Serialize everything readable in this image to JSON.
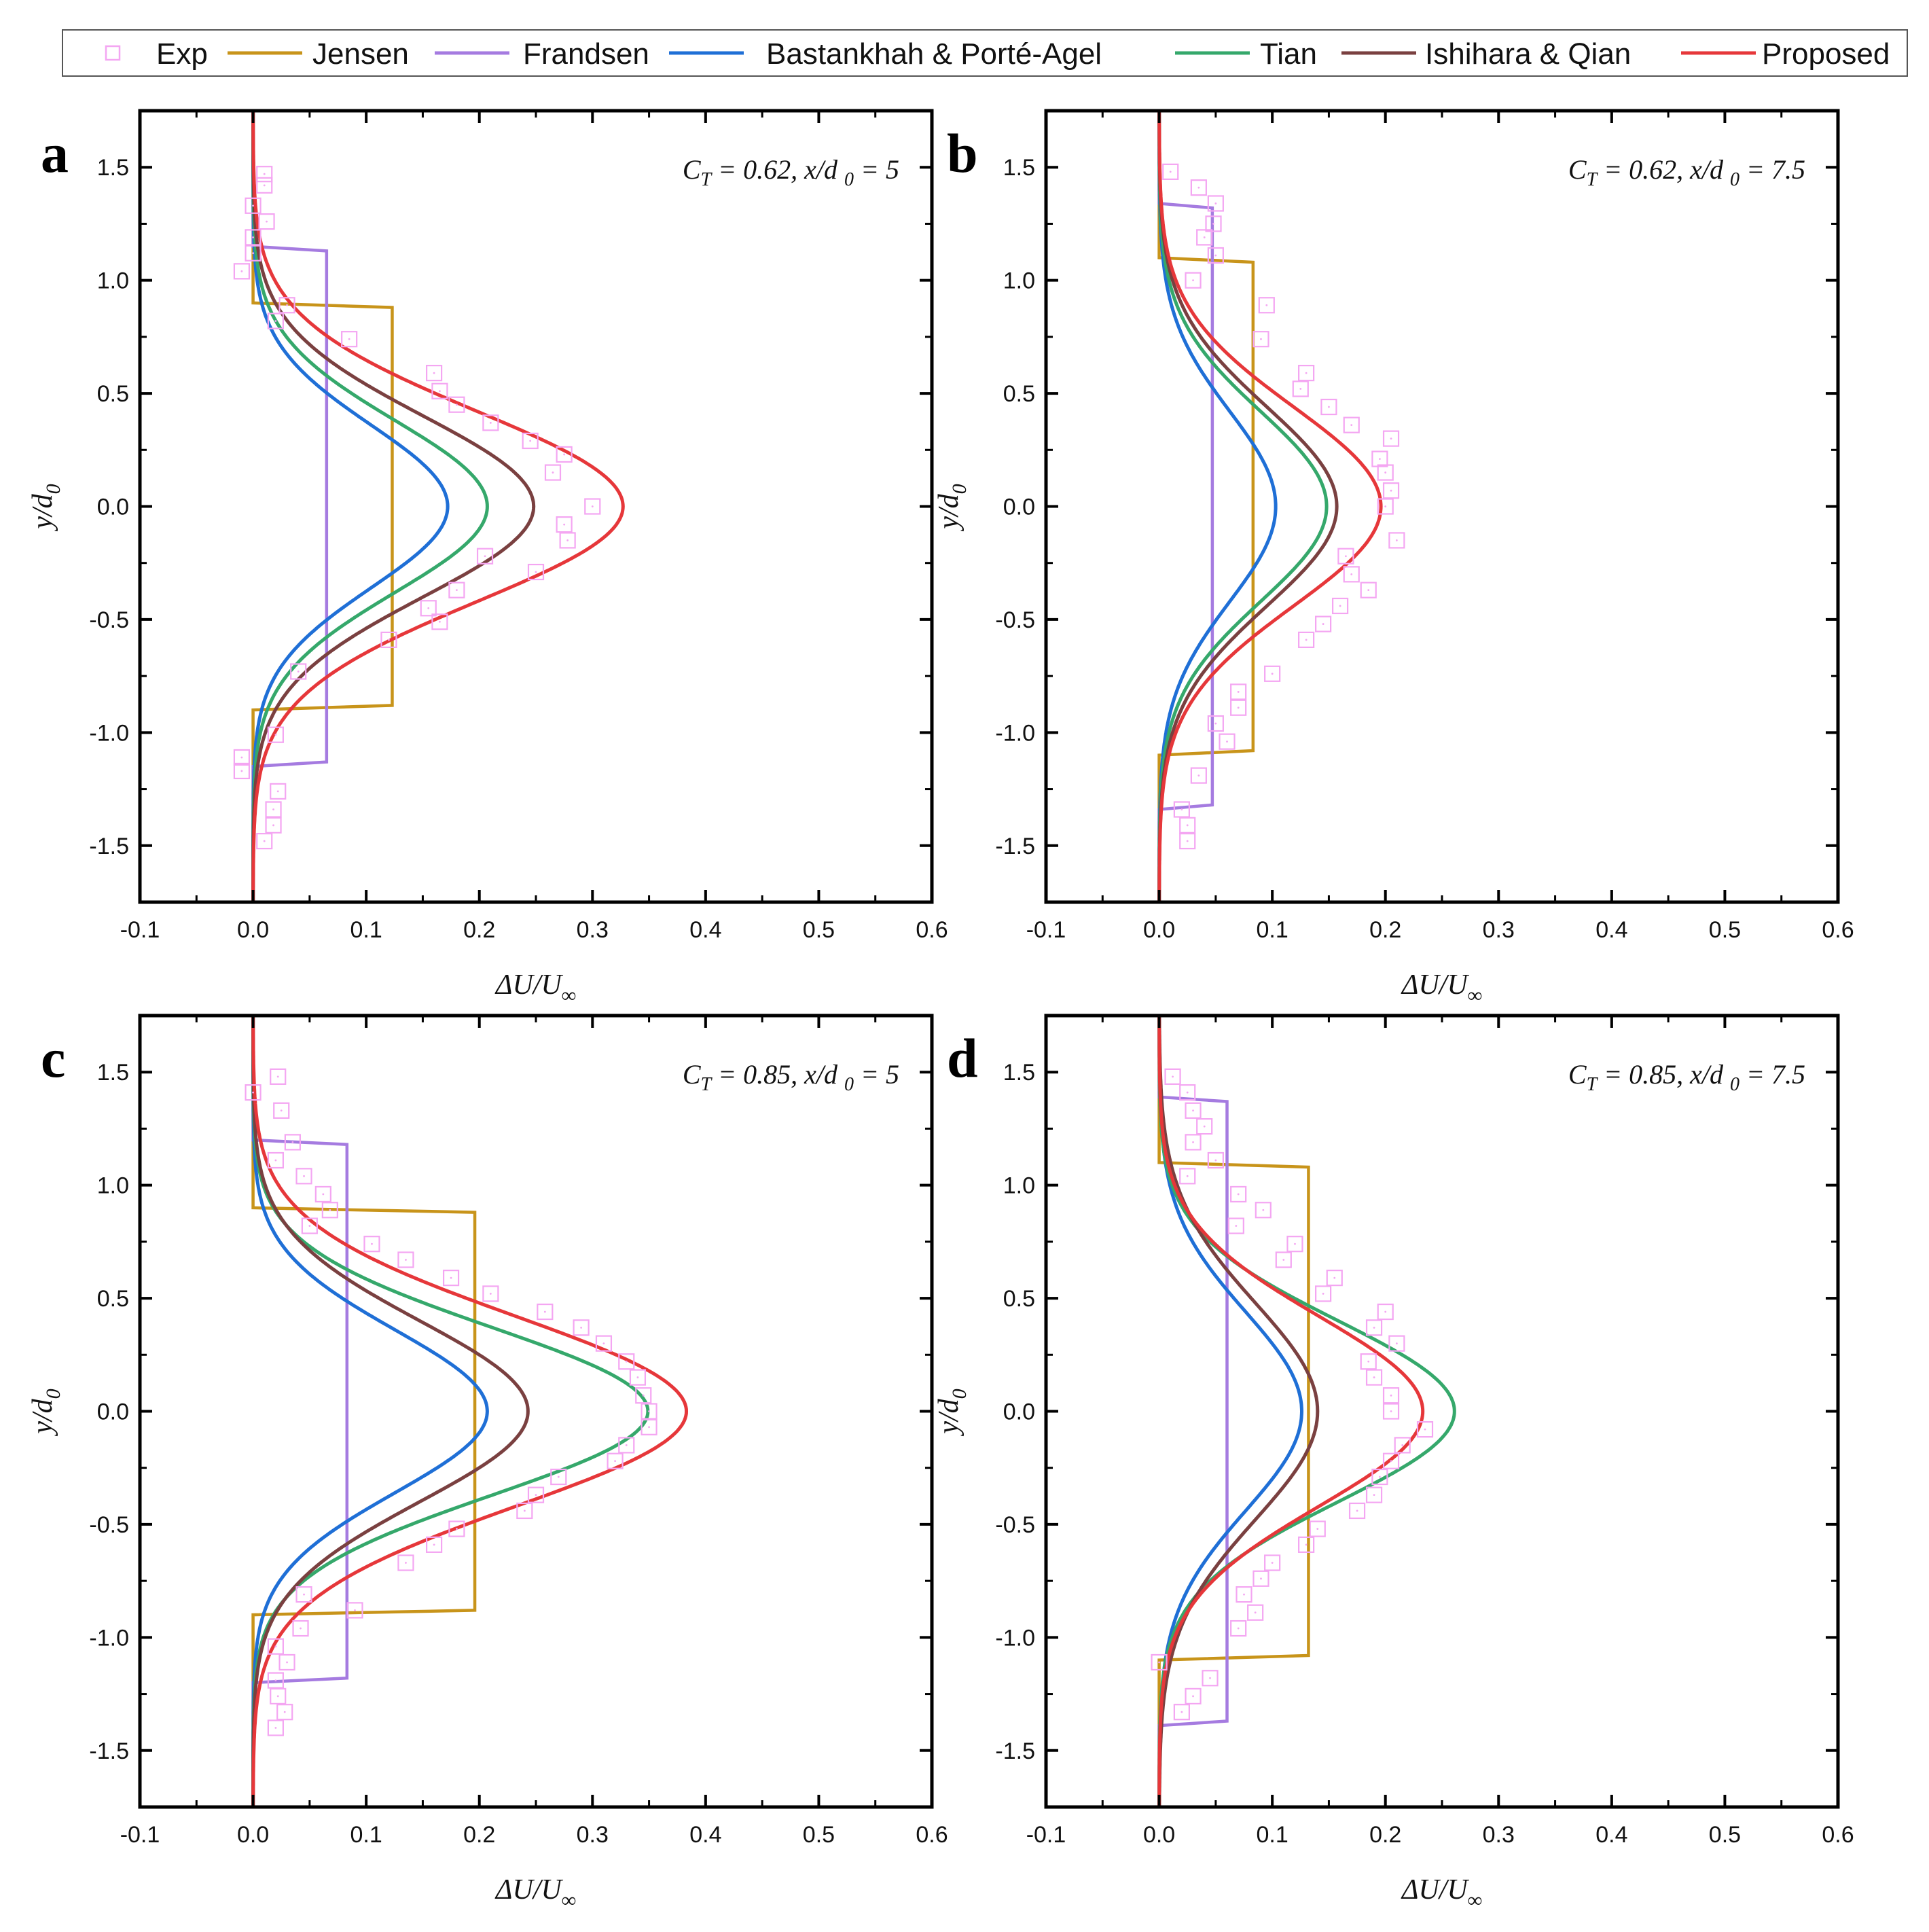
{
  "chart_data": {
    "type": "line",
    "legend": {
      "position": "top",
      "entries": [
        {
          "key": "exp",
          "label": "Exp",
          "color": "#f4a6f2",
          "marker": "square"
        },
        {
          "key": "jensen",
          "label": "Jensen",
          "color": "#c8941a"
        },
        {
          "key": "frandsen",
          "label": "Frandsen",
          "color": "#a57be0"
        },
        {
          "key": "bastankhah",
          "label": "Bastankhah & Porté-Agel",
          "color": "#1f6fd6"
        },
        {
          "key": "tian",
          "label": "Tian",
          "color": "#35a86b"
        },
        {
          "key": "ishihara",
          "label": "Ishihara & Qian",
          "color": "#7a4040"
        },
        {
          "key": "proposed",
          "label": "Proposed",
          "color": "#e6373a"
        }
      ]
    },
    "axes": {
      "xlim": [
        -0.1,
        0.6
      ],
      "ylim": [
        -1.75,
        1.75
      ],
      "xticks": [
        "-0.1",
        "0.0",
        "0.1",
        "0.2",
        "0.3",
        "0.4",
        "0.5",
        "0.6"
      ],
      "yticks": [
        "-1.5",
        "-1.0",
        "-0.5",
        "0.0",
        "0.5",
        "1.0",
        "1.5"
      ],
      "grid": false
    },
    "panels": [
      {
        "id": "a",
        "letter": "a",
        "annotation": "C_T = 0.62, x/d_0 = 5",
        "ct": "C",
        "ct_sub": "T",
        "ct_val": " = 0.62, x/d ",
        "xd_sub": "0",
        "xd_val": " = 5",
        "xlabel": "ΔU/U",
        "xlabel_sub": "∞",
        "ylabel": "y/d",
        "ylabel_sub": "0",
        "jensen": {
          "height": 0.123,
          "halfwidth": 0.88
        },
        "frandsen": {
          "height": 0.065,
          "halfwidth": 1.13
        },
        "gauss": {
          "bastankhah": [
            0.172,
            0.36
          ],
          "tian": [
            0.207,
            0.38
          ],
          "ishihara": [
            0.248,
            0.4
          ],
          "proposed": [
            0.327,
            0.42
          ]
        },
        "exp": [
          [
            0.01,
            1.47
          ],
          [
            0.01,
            1.42
          ],
          [
            0.0,
            1.33
          ],
          [
            0.012,
            1.26
          ],
          [
            0.0,
            1.19
          ],
          [
            0.0,
            1.12
          ],
          [
            -0.01,
            1.04
          ],
          [
            0.03,
            0.89
          ],
          [
            0.02,
            0.82
          ],
          [
            0.085,
            0.74
          ],
          [
            0.16,
            0.59
          ],
          [
            0.165,
            0.51
          ],
          [
            0.18,
            0.45
          ],
          [
            0.21,
            0.37
          ],
          [
            0.245,
            0.29
          ],
          [
            0.275,
            0.23
          ],
          [
            0.265,
            0.15
          ],
          [
            0.3,
            0.0
          ],
          [
            0.275,
            -0.08
          ],
          [
            0.278,
            -0.15
          ],
          [
            0.205,
            -0.22
          ],
          [
            0.25,
            -0.29
          ],
          [
            0.18,
            -0.37
          ],
          [
            0.155,
            -0.45
          ],
          [
            0.165,
            -0.51
          ],
          [
            0.12,
            -0.59
          ],
          [
            0.04,
            -0.73
          ],
          [
            0.02,
            -1.01
          ],
          [
            -0.01,
            -1.11
          ],
          [
            -0.01,
            -1.17
          ],
          [
            0.022,
            -1.26
          ],
          [
            0.018,
            -1.34
          ],
          [
            0.018,
            -1.41
          ],
          [
            0.01,
            -1.48
          ]
        ]
      },
      {
        "id": "b",
        "letter": "b",
        "annotation": "C_T = 0.62, x/d_0 = 7.5",
        "ct": "C",
        "ct_sub": "T",
        "ct_val": " = 0.62, x/d ",
        "xd_sub": "0",
        "xd_val": " = 7.5",
        "xlabel": "ΔU/U",
        "xlabel_sub": "∞",
        "ylabel": "y/d",
        "ylabel_sub": "0",
        "jensen": {
          "height": 0.083,
          "halfwidth": 1.08
        },
        "frandsen": {
          "height": 0.047,
          "halfwidth": 1.32
        },
        "gauss": {
          "bastankhah": [
            0.103,
            0.42
          ],
          "tian": [
            0.148,
            0.42
          ],
          "ishihara": [
            0.157,
            0.44
          ],
          "proposed": [
            0.196,
            0.44
          ]
        },
        "exp": [
          [
            0.01,
            1.48
          ],
          [
            0.035,
            1.41
          ],
          [
            0.05,
            1.34
          ],
          [
            0.048,
            1.25
          ],
          [
            0.04,
            1.19
          ],
          [
            0.05,
            1.11
          ],
          [
            0.03,
            1.0
          ],
          [
            0.095,
            0.89
          ],
          [
            0.09,
            0.74
          ],
          [
            0.13,
            0.59
          ],
          [
            0.125,
            0.52
          ],
          [
            0.15,
            0.44
          ],
          [
            0.17,
            0.36
          ],
          [
            0.205,
            0.3
          ],
          [
            0.195,
            0.21
          ],
          [
            0.2,
            0.15
          ],
          [
            0.205,
            0.07
          ],
          [
            0.2,
            0.0
          ],
          [
            0.21,
            -0.15
          ],
          [
            0.165,
            -0.22
          ],
          [
            0.17,
            -0.3
          ],
          [
            0.185,
            -0.37
          ],
          [
            0.16,
            -0.44
          ],
          [
            0.145,
            -0.52
          ],
          [
            0.13,
            -0.59
          ],
          [
            0.1,
            -0.74
          ],
          [
            0.07,
            -0.82
          ],
          [
            0.07,
            -0.89
          ],
          [
            0.05,
            -0.96
          ],
          [
            0.06,
            -1.04
          ],
          [
            0.035,
            -1.19
          ],
          [
            0.02,
            -1.34
          ],
          [
            0.025,
            -1.41
          ],
          [
            0.025,
            -1.48
          ]
        ]
      },
      {
        "id": "c",
        "letter": "c",
        "annotation": "C_T = 0.85, x/d_0 = 5",
        "ct": "C",
        "ct_sub": "T",
        "ct_val": " = 0.85, x/d ",
        "xd_sub": "0",
        "xd_val": " = 5",
        "xlabel": "ΔU/U",
        "xlabel_sub": "∞",
        "ylabel": "y/d",
        "ylabel_sub": "0",
        "jensen": {
          "height": 0.196,
          "halfwidth": 0.88
        },
        "frandsen": {
          "height": 0.083,
          "halfwidth": 1.18
        },
        "gauss": {
          "bastankhah": [
            0.207,
            0.36
          ],
          "tian": [
            0.349,
            0.37
          ],
          "ishihara": [
            0.243,
            0.4
          ],
          "proposed": [
            0.383,
            0.42
          ]
        },
        "exp": [
          [
            0.0,
            1.41
          ],
          [
            0.022,
            1.48
          ],
          [
            0.025,
            1.33
          ],
          [
            0.035,
            1.19
          ],
          [
            0.02,
            1.11
          ],
          [
            0.045,
            1.04
          ],
          [
            0.062,
            0.96
          ],
          [
            0.068,
            0.89
          ],
          [
            0.05,
            0.82
          ],
          [
            0.105,
            0.74
          ],
          [
            0.135,
            0.67
          ],
          [
            0.175,
            0.59
          ],
          [
            0.21,
            0.52
          ],
          [
            0.258,
            0.44
          ],
          [
            0.29,
            0.37
          ],
          [
            0.31,
            0.3
          ],
          [
            0.33,
            0.22
          ],
          [
            0.34,
            0.15
          ],
          [
            0.345,
            0.07
          ],
          [
            0.35,
            0.0
          ],
          [
            0.35,
            -0.07
          ],
          [
            0.33,
            -0.15
          ],
          [
            0.32,
            -0.22
          ],
          [
            0.27,
            -0.29
          ],
          [
            0.25,
            -0.37
          ],
          [
            0.24,
            -0.44
          ],
          [
            0.18,
            -0.52
          ],
          [
            0.16,
            -0.59
          ],
          [
            0.135,
            -0.67
          ],
          [
            0.045,
            -0.81
          ],
          [
            0.09,
            -0.88
          ],
          [
            0.042,
            -0.96
          ],
          [
            0.02,
            -1.04
          ],
          [
            0.03,
            -1.11
          ],
          [
            0.02,
            -1.19
          ],
          [
            0.022,
            -1.26
          ],
          [
            0.028,
            -1.33
          ],
          [
            0.02,
            -1.4
          ]
        ]
      },
      {
        "id": "d",
        "letter": "d",
        "annotation": "C_T = 0.85, x/d_0 = 7.5",
        "ct": "C",
        "ct_sub": "T",
        "ct_val": " = 0.85, x/d ",
        "xd_sub": "0",
        "xd_val": " = 7.5",
        "xlabel": "ΔU/U",
        "xlabel_sub": "∞",
        "ylabel": "y/d",
        "ylabel_sub": "0",
        "jensen": {
          "height": 0.132,
          "halfwidth": 1.08
        },
        "frandsen": {
          "height": 0.06,
          "halfwidth": 1.37
        },
        "gauss": {
          "bastankhah": [
            0.126,
            0.44
          ],
          "tian": [
            0.261,
            0.4
          ],
          "ishihara": [
            0.14,
            0.48
          ],
          "proposed": [
            0.233,
            0.42
          ]
        },
        "exp": [
          [
            0.012,
            1.48
          ],
          [
            0.025,
            1.41
          ],
          [
            0.03,
            1.33
          ],
          [
            0.04,
            1.26
          ],
          [
            0.03,
            1.19
          ],
          [
            0.05,
            1.11
          ],
          [
            0.025,
            1.04
          ],
          [
            0.07,
            0.96
          ],
          [
            0.092,
            0.89
          ],
          [
            0.068,
            0.82
          ],
          [
            0.12,
            0.74
          ],
          [
            0.11,
            0.67
          ],
          [
            0.155,
            0.59
          ],
          [
            0.145,
            0.52
          ],
          [
            0.2,
            0.44
          ],
          [
            0.19,
            0.37
          ],
          [
            0.21,
            0.3
          ],
          [
            0.185,
            0.22
          ],
          [
            0.19,
            0.15
          ],
          [
            0.205,
            0.07
          ],
          [
            0.205,
            0.0
          ],
          [
            0.235,
            -0.08
          ],
          [
            0.215,
            -0.15
          ],
          [
            0.205,
            -0.22
          ],
          [
            0.195,
            -0.29
          ],
          [
            0.19,
            -0.37
          ],
          [
            0.175,
            -0.44
          ],
          [
            0.14,
            -0.52
          ],
          [
            0.13,
            -0.59
          ],
          [
            0.1,
            -0.67
          ],
          [
            0.09,
            -0.74
          ],
          [
            0.075,
            -0.81
          ],
          [
            0.085,
            -0.89
          ],
          [
            0.07,
            -0.96
          ],
          [
            0.0,
            -1.11
          ],
          [
            0.045,
            -1.18
          ],
          [
            0.03,
            -1.26
          ],
          [
            0.02,
            -1.33
          ]
        ]
      }
    ]
  }
}
